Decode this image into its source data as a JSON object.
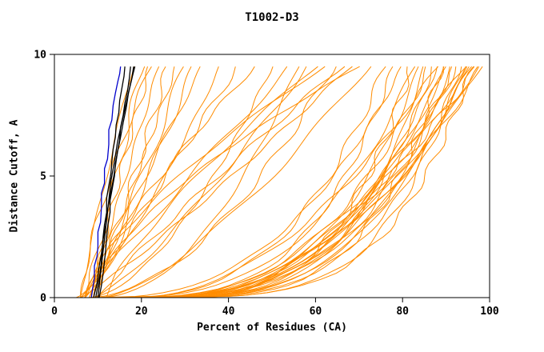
{
  "chart_data": {
    "type": "line",
    "title": "T1002-D3",
    "xlabel": "Percent of Residues (CA)",
    "ylabel": "Distance Cutoff, A",
    "xlim": [
      0,
      100
    ],
    "ylim": [
      0,
      10
    ],
    "xticks": [
      0,
      20,
      40,
      60,
      80,
      100
    ],
    "yticks": [
      0,
      5,
      10
    ],
    "grid": false,
    "legend": "none",
    "colors": {
      "models": "#ff8c00",
      "highlight": "#000000",
      "reference": "#0000cc",
      "axis": "#000000",
      "background": "#ffffff"
    },
    "highlight_series": [
      {
        "name": "blue-curve",
        "color": "#0000cc",
        "width": 1.3,
        "points": [
          [
            8.5,
            0
          ],
          [
            8.8,
            0.4
          ],
          [
            9.2,
            0.8
          ],
          [
            9.2,
            1.3
          ],
          [
            9.8,
            1.7
          ],
          [
            10,
            2.1
          ],
          [
            10,
            2.7
          ],
          [
            10.6,
            3.1
          ],
          [
            10.8,
            3.7
          ],
          [
            10.8,
            4.3
          ],
          [
            11.5,
            4.7
          ],
          [
            11.5,
            5.3
          ],
          [
            12.2,
            5.7
          ],
          [
            12.5,
            6.3
          ],
          [
            12.5,
            6.9
          ],
          [
            13.2,
            7.3
          ],
          [
            13.5,
            7.9
          ],
          [
            14,
            8.4
          ],
          [
            14.6,
            8.9
          ],
          [
            15,
            9.2
          ],
          [
            15.2,
            9.5
          ]
        ]
      },
      {
        "name": "black-curve-1",
        "color": "#000000",
        "width": 1.3,
        "points": [
          [
            9.5,
            0
          ],
          [
            10,
            0.5
          ],
          [
            10.5,
            1
          ],
          [
            10.8,
            1.5
          ],
          [
            11,
            2
          ],
          [
            11.2,
            2.5
          ],
          [
            11.5,
            3
          ],
          [
            12,
            3.5
          ],
          [
            12,
            4.1
          ],
          [
            12.5,
            4.6
          ],
          [
            13,
            5.1
          ],
          [
            13.2,
            5.6
          ],
          [
            13.5,
            6.1
          ],
          [
            14,
            6.6
          ],
          [
            14.2,
            7.1
          ],
          [
            14.8,
            7.6
          ],
          [
            15,
            8.1
          ],
          [
            15.5,
            8.6
          ],
          [
            16,
            9.1
          ],
          [
            16.2,
            9.5
          ]
        ]
      },
      {
        "name": "black-curve-2",
        "color": "#000000",
        "width": 1.3,
        "points": [
          [
            10.3,
            0
          ],
          [
            10.8,
            0.5
          ],
          [
            11.2,
            1
          ],
          [
            11.5,
            1.5
          ],
          [
            11.8,
            2
          ],
          [
            12,
            2.5
          ],
          [
            12.3,
            3
          ],
          [
            12.8,
            3.5
          ],
          [
            12.8,
            4
          ],
          [
            13.3,
            4.5
          ],
          [
            13.8,
            5
          ],
          [
            14,
            5.5
          ],
          [
            14.5,
            6
          ],
          [
            15,
            6.5
          ],
          [
            15.2,
            7
          ],
          [
            15.8,
            7.5
          ],
          [
            16.2,
            8
          ],
          [
            16.8,
            8.5
          ],
          [
            17.2,
            9
          ],
          [
            17.5,
            9.5
          ]
        ]
      },
      {
        "name": "black-curve-3",
        "color": "#000000",
        "width": 1.3,
        "points": [
          [
            9,
            0
          ],
          [
            9.8,
            0.6
          ],
          [
            10.2,
            1.2
          ],
          [
            10.8,
            1.8
          ],
          [
            11.2,
            2.4
          ],
          [
            11.8,
            3
          ],
          [
            12.2,
            3.6
          ],
          [
            12.8,
            4.2
          ],
          [
            13.5,
            4.8
          ],
          [
            14,
            5.4
          ],
          [
            14.5,
            6
          ],
          [
            15.2,
            6.6
          ],
          [
            15.8,
            7.2
          ],
          [
            16.5,
            7.8
          ],
          [
            17,
            8.4
          ],
          [
            17.8,
            9
          ],
          [
            18.2,
            9.5
          ]
        ]
      },
      {
        "name": "black-curve-4",
        "color": "#000000",
        "width": 1.3,
        "points": [
          [
            10,
            0
          ],
          [
            10.5,
            0.8
          ],
          [
            11,
            1.6
          ],
          [
            11.5,
            2.4
          ],
          [
            12,
            3.2
          ],
          [
            12.5,
            4
          ],
          [
            13,
            4.8
          ],
          [
            13.8,
            5.6
          ],
          [
            14.5,
            6.4
          ],
          [
            15.5,
            7.2
          ],
          [
            16.5,
            8
          ],
          [
            17.5,
            8.8
          ],
          [
            18.5,
            9.5
          ]
        ]
      }
    ],
    "orange_models": {
      "name": "predicted-model-curves",
      "color": "#ff8c00",
      "encoding": "each curve = [percent_at_cutoff_0, percent_at_cutoff_9.5, shape_exponent]; x(y) = x0 + (xe - x0) * (y/9.5)^p",
      "curves": [
        [
          6,
          18,
          1.1
        ],
        [
          7,
          20,
          0.9
        ],
        [
          6,
          22,
          1.3
        ],
        [
          8,
          24,
          1.0
        ],
        [
          7,
          26,
          0.8
        ],
        [
          9,
          22,
          1.2
        ],
        [
          8,
          28,
          0.95
        ],
        [
          10,
          30,
          1.05
        ],
        [
          7,
          32,
          0.85
        ],
        [
          9,
          34,
          1.15
        ],
        [
          5,
          38,
          0.75
        ],
        [
          6,
          42,
          0.95
        ],
        [
          7,
          46,
          1.25
        ],
        [
          8,
          50,
          0.6
        ],
        [
          6,
          54,
          1.0
        ],
        [
          9,
          58,
          0.8
        ],
        [
          7,
          62,
          1.45
        ],
        [
          8,
          64,
          0.55
        ],
        [
          10,
          66,
          1.1
        ],
        [
          6,
          68,
          0.9
        ],
        [
          9,
          70,
          1.55
        ],
        [
          11,
          72,
          0.7
        ],
        [
          12,
          60,
          1.3
        ],
        [
          10,
          56,
          0.5
        ],
        [
          12,
          76,
          0.35
        ],
        [
          14,
          78,
          0.3
        ],
        [
          10,
          80,
          0.4
        ],
        [
          15,
          82,
          0.25
        ],
        [
          12,
          83,
          0.35
        ],
        [
          16,
          84,
          0.3
        ],
        [
          11,
          85,
          0.22
        ],
        [
          13,
          86,
          0.33
        ],
        [
          17,
          87,
          0.27
        ],
        [
          12,
          88,
          0.3
        ],
        [
          14,
          89,
          0.22
        ],
        [
          18,
          90,
          0.35
        ],
        [
          13,
          91,
          0.25
        ],
        [
          15,
          92,
          0.3
        ],
        [
          11,
          93,
          0.2
        ],
        [
          16,
          94,
          0.26
        ],
        [
          12,
          95,
          0.3
        ],
        [
          14,
          96,
          0.22
        ],
        [
          20,
          97,
          0.4
        ],
        [
          22,
          98,
          0.45
        ],
        [
          25,
          94,
          0.5
        ],
        [
          18,
          88,
          0.5
        ],
        [
          30,
          96,
          0.55
        ],
        [
          35,
          97,
          0.6
        ],
        [
          28,
          92,
          0.42
        ],
        [
          24,
          90,
          0.38
        ],
        [
          26,
          95,
          0.35
        ],
        [
          32,
          98,
          0.5
        ]
      ]
    }
  }
}
